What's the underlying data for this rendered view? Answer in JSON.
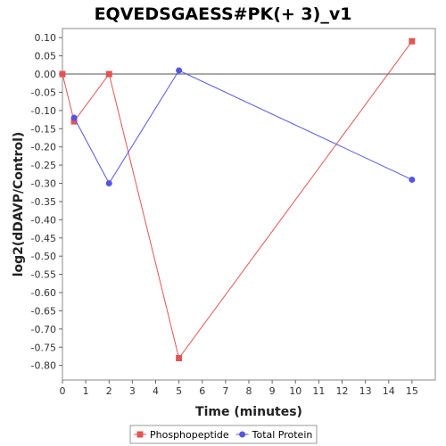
{
  "chart_data": {
    "type": "line",
    "title": "EQVEDSGAESS#PK(+ 3)_v1",
    "xlabel": "Time (minutes)",
    "ylabel": "log2(dDAVP/Control)",
    "xlim": [
      0,
      16
    ],
    "ylim": [
      -0.84,
      0.125
    ],
    "x_ticks": [
      0,
      1,
      2,
      3,
      4,
      5,
      6,
      7,
      8,
      9,
      10,
      11,
      12,
      13,
      14,
      15
    ],
    "y_ticks": [
      0.1,
      0.05,
      0.0,
      -0.05,
      -0.1,
      -0.15,
      -0.2,
      -0.25,
      -0.3,
      -0.35,
      -0.4,
      -0.45,
      -0.5,
      -0.55,
      -0.6,
      -0.65,
      -0.7,
      -0.75,
      -0.8
    ],
    "y_tick_labels": [
      "0.10",
      "0.05",
      "0.00",
      "-0.05",
      "-0.10",
      "-0.15",
      "-0.20",
      "-0.25",
      "-0.30",
      "-0.35",
      "-0.40",
      "-0.45",
      "-0.50",
      "-0.55",
      "-0.60",
      "-0.65",
      "-0.70",
      "-0.75",
      "-0.80"
    ],
    "grid": false,
    "legend_position": "bottom",
    "series": [
      {
        "name": "Phosphopeptide",
        "color": "#e05555",
        "marker": "square",
        "points": [
          [
            0,
            0.0
          ],
          [
            0.5,
            -0.13
          ],
          [
            2,
            0.0
          ],
          [
            5,
            -0.78
          ],
          [
            15,
            0.09
          ]
        ]
      },
      {
        "name": "Total Protein",
        "color": "#5555e0",
        "marker": "circle",
        "points": [
          [
            0.5,
            -0.12
          ],
          [
            2,
            -0.3
          ],
          [
            5,
            0.01
          ],
          [
            15,
            -0.29
          ]
        ]
      }
    ]
  }
}
